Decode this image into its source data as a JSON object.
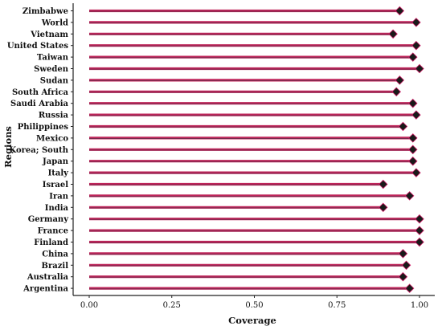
{
  "chart_data": {
    "type": "lollipop",
    "title": "",
    "xlabel": "Coverage",
    "ylabel": "Regions",
    "xlim": [
      0,
      1
    ],
    "x_ticks": [
      "0.00",
      "0.25",
      "0.50",
      "0.75",
      "1.00"
    ],
    "grid": false,
    "legend": "none",
    "categories": [
      "Zimbabwe",
      "World",
      "Vietnam",
      "United States",
      "Taiwan",
      "Sweden",
      "Sudan",
      "South Africa",
      "Saudi Arabia",
      "Russia",
      "Philippines",
      "Mexico",
      "Korea; South",
      "Japan",
      "Italy",
      "Israel",
      "Iran",
      "India",
      "Germany",
      "France",
      "Finland",
      "China",
      "Brazil",
      "Australia",
      "Argentina"
    ],
    "values": [
      0.94,
      0.99,
      0.92,
      0.99,
      0.98,
      1.0,
      0.94,
      0.93,
      0.98,
      0.99,
      0.95,
      0.98,
      0.98,
      0.98,
      0.99,
      0.89,
      0.97,
      0.89,
      1.0,
      1.0,
      1.0,
      0.95,
      0.96,
      0.95,
      0.97
    ],
    "colors": {
      "line": "#c0245a",
      "line_dark": "#7a2a4e",
      "marker_fill": "#1a1a1a",
      "marker_stroke": "#d2206a",
      "axis": "#222222"
    }
  }
}
